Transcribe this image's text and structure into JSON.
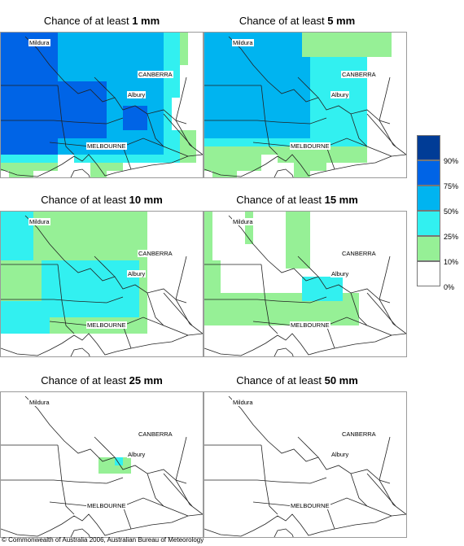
{
  "panels": [
    {
      "title_prefix": "Chance of at least ",
      "title_amount": "1 mm",
      "key": "p1"
    },
    {
      "title_prefix": "Chance of at least ",
      "title_amount": "5 mm",
      "key": "p5"
    },
    {
      "title_prefix": "Chance of at least ",
      "title_amount": "10 mm",
      "key": "p10"
    },
    {
      "title_prefix": "Chance of at least ",
      "title_amount": "15 mm",
      "key": "p15"
    },
    {
      "title_prefix": "Chance of at least ",
      "title_amount": "25 mm",
      "key": "p25"
    },
    {
      "title_prefix": "Chance of at least ",
      "title_amount": "50 mm",
      "key": "p50"
    }
  ],
  "places": {
    "mildura": "Mildura",
    "canberra": "CANBERRA",
    "albury": "Albury",
    "melbourne": "MELBOURNE"
  },
  "legend": {
    "labels": [
      "90%",
      "75%",
      "50%",
      "25%",
      "10%",
      "0%"
    ],
    "colors": [
      "#003c96",
      "#0064e6",
      "#00b4f0",
      "#32f0f0",
      "#96f096",
      "#ffffff"
    ]
  },
  "copyright": "© Commonwealth of Australia 2006, Australian Bureau of Meteorology"
}
